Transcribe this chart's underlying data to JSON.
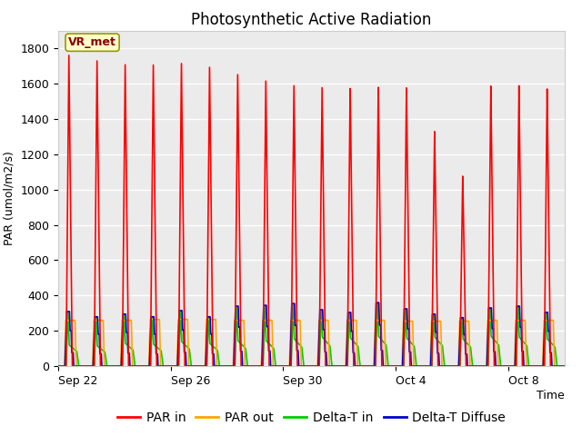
{
  "title": "Photosynthetic Active Radiation",
  "ylabel": "PAR (umol/m2/s)",
  "xlabel": "Time",
  "ylim": [
    0,
    1900
  ],
  "background_color": "#ffffff",
  "plot_bg_color": "#ebebeb",
  "grid_color": "#ffffff",
  "legend_label": "VR_met",
  "series": {
    "PAR_in": {
      "color": "#ff0000",
      "label": "PAR in"
    },
    "PAR_out": {
      "color": "#ffa500",
      "label": "PAR out"
    },
    "Delta_T_in": {
      "color": "#00cc00",
      "label": "Delta-T in"
    },
    "Delta_T_Diffuse": {
      "color": "#0000cc",
      "label": "Delta-T Diffuse"
    }
  },
  "x_tick_labels": [
    "Sep 22",
    "Sep 26",
    "Sep 30",
    "Oct 4",
    "Oct 8"
  ],
  "num_days": 18,
  "day_peaks_PAR_in": [
    1760,
    1730,
    1710,
    1710,
    1720,
    1700,
    1660,
    1625,
    1600,
    1590,
    1585,
    1590,
    1585,
    1335,
    1080,
    1590,
    1590,
    1570
  ],
  "day_peaks_PAR_out": [
    260,
    260,
    260,
    265,
    265,
    265,
    260,
    260,
    260,
    260,
    260,
    260,
    255,
    255,
    255,
    260,
    260,
    260
  ],
  "day_peaks_Delta_T_in": [
    310,
    280,
    295,
    280,
    315,
    280,
    340,
    345,
    355,
    320,
    305,
    360,
    325,
    295,
    275,
    330,
    340,
    305
  ],
  "day_peaks_Delta_T_in_plateau": [
    120,
    115,
    130,
    125,
    140,
    130,
    145,
    145,
    155,
    165,
    160,
    170,
    160,
    165,
    155,
    170,
    165,
    155
  ],
  "day_peaks_Delta_T_Diffuse": [
    310,
    280,
    295,
    280,
    315,
    280,
    340,
    345,
    355,
    320,
    305,
    360,
    325,
    295,
    275,
    330,
    340,
    305
  ],
  "title_fontsize": 12,
  "axis_fontsize": 9,
  "tick_fontsize": 9,
  "legend_fontsize": 10,
  "linewidth": 1.2
}
